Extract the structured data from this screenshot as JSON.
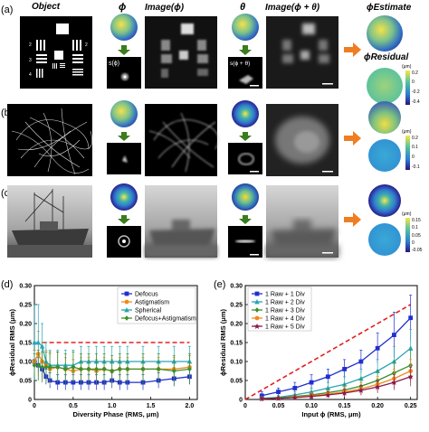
{
  "figure": {
    "panel_labels": [
      "(a)",
      "(b)",
      "(c)",
      "(d)",
      "(e)"
    ],
    "col_headers": {
      "object": "Object",
      "phi": "ϕ",
      "image_phi": "Image(ϕ)",
      "theta": "θ",
      "image_phi_theta": "Image(ϕ + θ)",
      "phi_estimate": "ϕEstimate",
      "phi_residual": "ϕResidual"
    },
    "psf_labels": {
      "s_phi": "s(ϕ)",
      "s_phi_theta": "s(ϕ + θ)"
    },
    "colorbars": [
      {
        "unit": "(μm)",
        "ticks": [
          "0.2",
          "0",
          "-0.2",
          "-0.4"
        ]
      },
      {
        "unit": "(μm)",
        "ticks": [
          "0.2",
          "0.1",
          "0",
          "-0.1"
        ]
      },
      {
        "unit": "(μm)",
        "ticks": [
          "0.15",
          "0.1",
          "0.05",
          "0",
          "-0.05"
        ]
      }
    ],
    "colors": {
      "arrow_orange": "#ef7d22",
      "arrow_green": "#3a7d1c",
      "dashed_red": "#e02020"
    }
  },
  "chart_data": [
    {
      "type": "line",
      "panel": "(d)",
      "xlabel": "Diversity Phase (RMS, μm)",
      "ylabel": "ϕResidual RMS (μm)",
      "xlim": [
        0,
        2.1
      ],
      "ylim": [
        0,
        0.3
      ],
      "xticks": [
        "0",
        "0.5",
        "1.0",
        "1.5",
        "2.0"
      ],
      "yticks": [
        "0",
        "0.05",
        "0.10",
        "0.15",
        "0.20",
        "0.25",
        "0.30"
      ],
      "reference_line": {
        "y": 0.15,
        "x": [
          0.1,
          2.0
        ],
        "style": "dashed",
        "color": "#e02020"
      },
      "legend": "top-right",
      "series": [
        {
          "name": "Defocus",
          "color": "#1f2fd0",
          "marker": "square",
          "x": [
            0,
            0.05,
            0.1,
            0.15,
            0.2,
            0.3,
            0.4,
            0.5,
            0.6,
            0.7,
            0.8,
            0.9,
            1.0,
            1.1,
            1.2,
            1.4,
            1.6,
            1.8,
            2.0
          ],
          "y": [
            0.1,
            0.09,
            0.08,
            0.06,
            0.05,
            0.045,
            0.045,
            0.045,
            0.045,
            0.045,
            0.045,
            0.045,
            0.05,
            0.045,
            0.045,
            0.045,
            0.05,
            0.055,
            0.06
          ],
          "err": [
            0.03,
            0.02,
            0.02,
            0.02,
            0.02,
            0.02,
            0.02,
            0.02,
            0.02,
            0.02,
            0.02,
            0.02,
            0.02,
            0.02,
            0.02,
            0.02,
            0.02,
            0.02,
            0.02
          ]
        },
        {
          "name": "Astigmatism",
          "color": "#f08a1c",
          "marker": "circle",
          "x": [
            0,
            0.05,
            0.1,
            0.15,
            0.2,
            0.3,
            0.4,
            0.5,
            0.6,
            0.7,
            0.8,
            0.9,
            1.0,
            1.1,
            1.2,
            1.4,
            1.6,
            1.8,
            2.0
          ],
          "y": [
            0.1,
            0.12,
            0.1,
            0.09,
            0.08,
            0.085,
            0.08,
            0.075,
            0.08,
            0.08,
            0.075,
            0.08,
            0.075,
            0.08,
            0.08,
            0.08,
            0.08,
            0.08,
            0.085
          ],
          "err": [
            0.03,
            0.06,
            0.05,
            0.04,
            0.04,
            0.04,
            0.03,
            0.03,
            0.03,
            0.03,
            0.03,
            0.03,
            0.03,
            0.03,
            0.03,
            0.03,
            0.03,
            0.03,
            0.03
          ]
        },
        {
          "name": "Spherical",
          "color": "#2aa5b5",
          "marker": "triangle",
          "x": [
            0,
            0.05,
            0.1,
            0.15,
            0.2,
            0.3,
            0.4,
            0.5,
            0.6,
            0.7,
            0.8,
            0.9,
            1.0,
            1.1,
            1.2,
            1.4,
            1.6,
            1.8,
            2.0
          ],
          "y": [
            0.15,
            0.15,
            0.14,
            0.1,
            0.09,
            0.09,
            0.09,
            0.09,
            0.1,
            0.1,
            0.1,
            0.1,
            0.1,
            0.1,
            0.1,
            0.1,
            0.1,
            0.1,
            0.1
          ],
          "err": [
            0.1,
            0.1,
            0.06,
            0.05,
            0.04,
            0.04,
            0.04,
            0.04,
            0.04,
            0.04,
            0.04,
            0.04,
            0.04,
            0.04,
            0.04,
            0.04,
            0.04,
            0.04,
            0.04
          ]
        },
        {
          "name": "Defocus+Astigmatism",
          "color": "#3a8f2a",
          "marker": "diamond",
          "x": [
            0,
            0.05,
            0.1,
            0.15,
            0.2,
            0.3,
            0.4,
            0.5,
            0.6,
            0.7,
            0.8,
            0.9,
            1.0,
            1.1,
            1.2,
            1.4,
            1.6,
            1.8,
            2.0
          ],
          "y": [
            0.09,
            0.09,
            0.085,
            0.085,
            0.085,
            0.085,
            0.08,
            0.085,
            0.08,
            0.08,
            0.08,
            0.08,
            0.075,
            0.08,
            0.08,
            0.08,
            0.08,
            0.075,
            0.08
          ],
          "err": [
            0.03,
            0.04,
            0.04,
            0.04,
            0.04,
            0.04,
            0.04,
            0.04,
            0.04,
            0.04,
            0.04,
            0.04,
            0.04,
            0.04,
            0.04,
            0.04,
            0.04,
            0.04,
            0.04
          ]
        }
      ]
    },
    {
      "type": "line",
      "panel": "(e)",
      "xlabel": "Input ϕ (RMS, μm)",
      "ylabel": "ϕResidual RMS (μm)",
      "xlim": [
        0,
        0.26
      ],
      "ylim": [
        0,
        0.3
      ],
      "xticks": [
        "0",
        "0.05",
        "0.10",
        "0.15",
        "0.20",
        "0.25"
      ],
      "yticks": [
        "0",
        "0.05",
        "0.10",
        "0.15",
        "0.20",
        "0.25",
        "0.30"
      ],
      "reference_line": {
        "x": [
          0,
          0.25
        ],
        "y": [
          0,
          0.25
        ],
        "style": "dashed",
        "color": "#e02020"
      },
      "legend": "top-left",
      "series": [
        {
          "name": "1 Raw + 1 Div",
          "color": "#1f2fd0",
          "marker": "square",
          "x": [
            0.025,
            0.05,
            0.075,
            0.1,
            0.125,
            0.15,
            0.175,
            0.2,
            0.225,
            0.25
          ],
          "y": [
            0.01,
            0.02,
            0.03,
            0.045,
            0.06,
            0.08,
            0.1,
            0.135,
            0.17,
            0.215
          ],
          "err": [
            0.01,
            0.01,
            0.015,
            0.02,
            0.02,
            0.025,
            0.03,
            0.04,
            0.06,
            0.06
          ]
        },
        {
          "name": "1 Raw + 2 Div",
          "color": "#2aa5b5",
          "marker": "triangle",
          "x": [
            0.025,
            0.05,
            0.075,
            0.1,
            0.125,
            0.15,
            0.175,
            0.2,
            0.225,
            0.25
          ],
          "y": [
            0.003,
            0.006,
            0.012,
            0.02,
            0.03,
            0.04,
            0.055,
            0.075,
            0.1,
            0.135
          ],
          "err": [
            0.005,
            0.005,
            0.008,
            0.01,
            0.015,
            0.02,
            0.025,
            0.03,
            0.04,
            0.05
          ]
        },
        {
          "name": "1 Raw + 3 Div",
          "color": "#3a8f2a",
          "marker": "diamond",
          "x": [
            0.025,
            0.05,
            0.075,
            0.1,
            0.125,
            0.15,
            0.175,
            0.2,
            0.225,
            0.25
          ],
          "y": [
            0.002,
            0.004,
            0.008,
            0.012,
            0.018,
            0.025,
            0.035,
            0.05,
            0.07,
            0.09
          ],
          "err": [
            0.004,
            0.004,
            0.006,
            0.008,
            0.01,
            0.015,
            0.02,
            0.025,
            0.03,
            0.04
          ]
        },
        {
          "name": "1 Raw + 4 Div",
          "color": "#f08a1c",
          "marker": "circle",
          "x": [
            0.025,
            0.05,
            0.075,
            0.1,
            0.125,
            0.15,
            0.175,
            0.2,
            0.225,
            0.25
          ],
          "y": [
            0.002,
            0.003,
            0.006,
            0.01,
            0.014,
            0.02,
            0.028,
            0.04,
            0.055,
            0.075
          ],
          "err": [
            0.004,
            0.004,
            0.005,
            0.007,
            0.01,
            0.012,
            0.016,
            0.02,
            0.025,
            0.03
          ]
        },
        {
          "name": "1 Raw + 5 Div",
          "color": "#8b1a4a",
          "marker": "star",
          "x": [
            0.025,
            0.05,
            0.075,
            0.1,
            0.125,
            0.15,
            0.175,
            0.2,
            0.225,
            0.25
          ],
          "y": [
            0.002,
            0.003,
            0.005,
            0.008,
            0.012,
            0.017,
            0.024,
            0.033,
            0.045,
            0.06
          ],
          "err": [
            0.004,
            0.004,
            0.005,
            0.006,
            0.008,
            0.01,
            0.013,
            0.016,
            0.02,
            0.025
          ]
        }
      ]
    }
  ]
}
